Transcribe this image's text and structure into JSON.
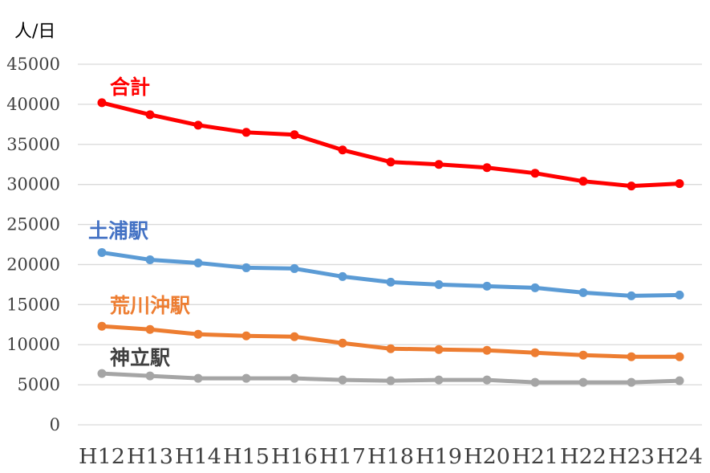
{
  "chart_data": {
    "type": "line",
    "ylabel": "人/日",
    "ylim": [
      0,
      45000
    ],
    "yticks": [
      0,
      5000,
      10000,
      15000,
      20000,
      25000,
      30000,
      35000,
      40000,
      45000
    ],
    "grid": true,
    "categories": [
      "H12",
      "H13",
      "H14",
      "H15",
      "H16",
      "H17",
      "H18",
      "H19",
      "H20",
      "H21",
      "H22",
      "H23",
      "H24"
    ],
    "series": [
      {
        "name": "合計",
        "color": "#FF0000",
        "values": [
          40200,
          38700,
          37400,
          36500,
          36200,
          34300,
          32800,
          32500,
          32100,
          31400,
          30400,
          29800,
          30100
        ]
      },
      {
        "name": "土浦駅",
        "color": "#5B9BD5",
        "values": [
          21500,
          20600,
          20200,
          19600,
          19500,
          18500,
          17800,
          17500,
          17300,
          17100,
          16500,
          16100,
          16200
        ]
      },
      {
        "name": "荒川沖駅",
        "color": "#ED7D31",
        "values": [
          12300,
          11900,
          11300,
          11100,
          11000,
          10200,
          9500,
          9400,
          9300,
          9000,
          8700,
          8500,
          8500
        ]
      },
      {
        "name": "神立駅",
        "color": "#A5A5A5",
        "values": [
          6400,
          6100,
          5800,
          5800,
          5800,
          5600,
          5500,
          5600,
          5600,
          5300,
          5300,
          5300,
          5500
        ]
      }
    ]
  }
}
